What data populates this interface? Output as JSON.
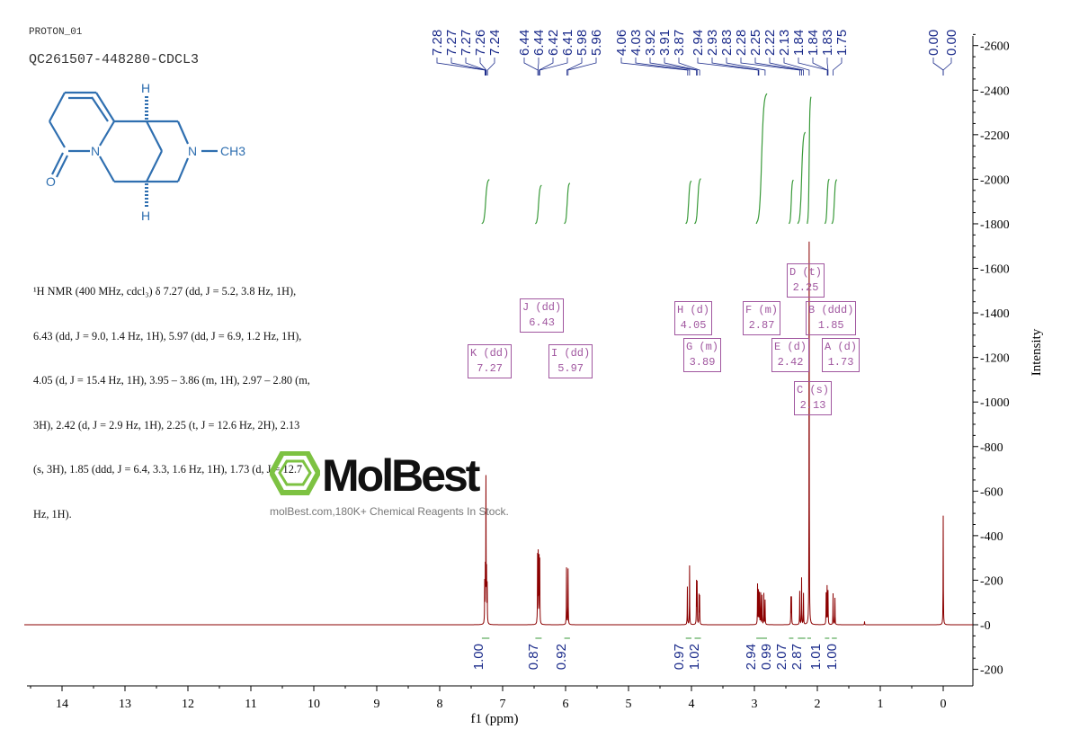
{
  "header": {
    "experiment": "PROTON_01",
    "sample": "QC261507-448280-CDCL3"
  },
  "structure": {
    "atoms": [
      "H",
      "H",
      "N",
      "N",
      "O",
      "CH3"
    ],
    "color": "#2f6fb0"
  },
  "description_lines": [
    "¹H NMR (400 MHz, cdcl₃) δ 7.27 (dd, J = 5.2, 3.8 Hz, 1H),",
    "6.43 (dd, J = 9.0, 1.4 Hz, 1H), 5.97 (dd, J = 6.9, 1.2 Hz, 1H),",
    "4.05 (d, J = 15.4 Hz, 1H), 3.95 – 3.86 (m, 1H), 2.97 – 2.80 (m,",
    "3H), 2.42 (d, J = 2.9 Hz, 1H), 2.25 (t, J = 12.6 Hz, 2H), 2.13",
    "(s, 3H), 1.85 (ddd, J = 6.4, 3.3, 1.6 Hz, 1H), 1.73 (d, J = 12.7",
    "Hz, 1H)."
  ],
  "watermark": {
    "logo": "MolBest",
    "text": "molBest.com,180K+ Chemical Reagents In Stock.",
    "logo_color": "#7dc242"
  },
  "chart_data": {
    "type": "line",
    "xlabel": "f1 (ppm)",
    "ylabel": "Intensity",
    "xlim": [
      14.6,
      -0.47
    ],
    "ylim": [
      -250,
      2700
    ],
    "x_ticks": [
      14,
      13,
      12,
      11,
      10,
      9,
      8,
      7,
      6,
      5,
      4,
      3,
      2,
      1,
      0
    ],
    "y_ticks": [
      -200,
      0,
      200,
      400,
      600,
      800,
      1000,
      1200,
      1400,
      1600,
      1800,
      2000,
      2200,
      2400,
      2600
    ],
    "spectrum_color": "#8b0000",
    "integral_color": "#3a9a3a",
    "multiplet_color": "#a0569f",
    "peak_label_color": "#1a2a8a",
    "peaks": [
      [
        7.285,
        180
      ],
      [
        7.275,
        230
      ],
      [
        7.265,
        640
      ],
      [
        7.255,
        220
      ],
      [
        7.245,
        170
      ],
      [
        6.445,
        300
      ],
      [
        6.435,
        310
      ],
      [
        6.42,
        290
      ],
      [
        6.41,
        280
      ],
      [
        5.985,
        255
      ],
      [
        5.96,
        250
      ],
      [
        4.065,
        170
      ],
      [
        4.03,
        265
      ],
      [
        3.92,
        190
      ],
      [
        3.91,
        185
      ],
      [
        3.88,
        130
      ],
      [
        3.87,
        125
      ],
      [
        2.95,
        180
      ],
      [
        2.935,
        150
      ],
      [
        2.92,
        140
      ],
      [
        2.9,
        140
      ],
      [
        2.88,
        130
      ],
      [
        2.85,
        140
      ],
      [
        2.83,
        110
      ],
      [
        2.42,
        120
      ],
      [
        2.41,
        120
      ],
      [
        2.28,
        150
      ],
      [
        2.25,
        210
      ],
      [
        2.22,
        140
      ],
      [
        2.13,
        1720
      ],
      [
        1.86,
        140
      ],
      [
        1.845,
        170
      ],
      [
        1.83,
        150
      ],
      [
        1.75,
        140
      ],
      [
        1.72,
        120
      ],
      [
        1.25,
        15
      ],
      [
        0.0,
        490
      ]
    ],
    "peak_labels": [
      "7.28",
      "7.27",
      "7.27",
      "7.26",
      "7.24",
      "6.44",
      "6.44",
      "6.42",
      "6.41",
      "5.98",
      "5.96",
      "4.06",
      "4.03",
      "3.92",
      "3.91",
      "3.87",
      "2.94",
      "2.93",
      "2.83",
      "2.28",
      "2.25",
      "2.22",
      "2.13",
      "1.84",
      "1.84",
      "1.83",
      "1.75",
      "0.00",
      "0.00"
    ],
    "integrals": [
      {
        "from": 7.33,
        "to": 7.21,
        "value": "1.00"
      },
      {
        "from": 6.48,
        "to": 6.38,
        "value": "0.87"
      },
      {
        "from": 6.02,
        "to": 5.93,
        "value": "0.92"
      },
      {
        "from": 4.09,
        "to": 4.0,
        "value": "0.97"
      },
      {
        "from": 3.95,
        "to": 3.85,
        "value": "1.02"
      },
      {
        "from": 2.97,
        "to": 2.8,
        "value": "2.94"
      },
      {
        "from": 2.45,
        "to": 2.38,
        "value": "0.99"
      },
      {
        "from": 2.31,
        "to": 2.19,
        "value": "2.07"
      },
      {
        "from": 2.16,
        "to": 2.1,
        "value": "2.87"
      },
      {
        "from": 1.88,
        "to": 1.81,
        "value": "1.01"
      },
      {
        "from": 1.77,
        "to": 1.69,
        "value": "1.00"
      }
    ],
    "multiplets": [
      {
        "id": "K",
        "type": "dd",
        "shift": "7.27"
      },
      {
        "id": "J",
        "type": "dd",
        "shift": "6.43"
      },
      {
        "id": "I",
        "type": "dd",
        "shift": "5.97"
      },
      {
        "id": "H",
        "type": "d",
        "shift": "4.05"
      },
      {
        "id": "G",
        "type": "m",
        "shift": "3.89"
      },
      {
        "id": "F",
        "type": "m",
        "shift": "2.87"
      },
      {
        "id": "E",
        "type": "d",
        "shift": "2.42"
      },
      {
        "id": "D",
        "type": "t",
        "shift": "2.25"
      },
      {
        "id": "C",
        "type": "s",
        "shift": "2.13"
      },
      {
        "id": "B",
        "type": "ddd",
        "shift": "1.85"
      },
      {
        "id": "A",
        "type": "d",
        "shift": "1.73"
      }
    ]
  }
}
